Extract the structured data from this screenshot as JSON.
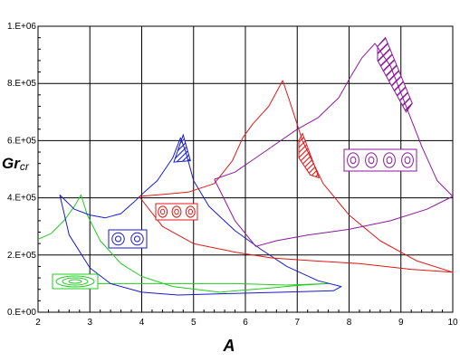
{
  "chart_data": {
    "type": "line",
    "xlabel": "A",
    "ylabel": {
      "main": "Gr",
      "sub": "cr"
    },
    "xlim": [
      2,
      10
    ],
    "ylim": [
      0,
      1000000
    ],
    "x_ticks": [
      "2",
      "3",
      "4",
      "5",
      "6",
      "7",
      "8",
      "9",
      "10"
    ],
    "y_ticks": [
      "0.E+00",
      "2.E+05",
      "4.E+05",
      "6.E+05",
      "8.E+05",
      "1.E+06"
    ],
    "grid": true,
    "colors": {
      "green": "#22cc22",
      "blue": "#1a1acc",
      "red": "#e01818",
      "purple": "#8a1a9a"
    },
    "series": [
      {
        "color": "green",
        "marker": "one-oval",
        "points": [
          [
            2,
            255000
          ],
          [
            2.25,
            275000
          ],
          [
            2.5,
            320000
          ],
          [
            2.7,
            370000
          ],
          [
            2.83,
            410000
          ],
          [
            2.95,
            340000
          ],
          [
            3.2,
            250000
          ],
          [
            3.6,
            170000
          ],
          [
            4,
            125000
          ],
          [
            4.6,
            90000
          ],
          [
            5.5,
            70000
          ],
          [
            6.5,
            85000
          ],
          [
            7.1,
            95000
          ],
          [
            7.6,
            100000
          ],
          [
            6.8,
            95000
          ],
          [
            5.8,
            100000
          ],
          [
            4.6,
            100000
          ],
          [
            3.6,
            100000
          ],
          [
            2.9,
            100000
          ]
        ]
      },
      {
        "color": "blue",
        "marker": "two-ovals",
        "points": [
          [
            2.42,
            410000
          ],
          [
            2.7,
            360000
          ],
          [
            3.0,
            340000
          ],
          [
            3.3,
            330000
          ],
          [
            3.6,
            345000
          ],
          [
            3.85,
            385000
          ],
          [
            4.05,
            420000
          ],
          [
            4.3,
            460000
          ],
          [
            4.6,
            540000
          ],
          [
            4.75,
            610000
          ],
          [
            4.85,
            560000
          ],
          [
            5.0,
            460000
          ],
          [
            5.3,
            370000
          ],
          [
            5.8,
            285000
          ],
          [
            6.3,
            220000
          ],
          [
            6.8,
            160000
          ],
          [
            7.4,
            110000
          ],
          [
            7.85,
            90000
          ],
          [
            7.7,
            75000
          ],
          [
            6.7,
            70000
          ],
          [
            5.6,
            65000
          ],
          [
            4.7,
            60000
          ],
          [
            4.0,
            70000
          ],
          [
            3.4,
            100000
          ],
          [
            3.0,
            155000
          ],
          [
            2.6,
            270000
          ],
          [
            2.42,
            410000
          ]
        ]
      },
      {
        "color": "red",
        "marker": "three-ovals",
        "points": [
          [
            3.95,
            405000
          ],
          [
            4.3,
            410000
          ],
          [
            4.9,
            420000
          ],
          [
            5.4,
            450000
          ],
          [
            5.75,
            530000
          ],
          [
            5.95,
            610000
          ],
          [
            6.15,
            660000
          ],
          [
            6.45,
            720000
          ],
          [
            6.72,
            810000
          ],
          [
            6.85,
            740000
          ],
          [
            7.1,
            600000
          ],
          [
            7.5,
            450000
          ],
          [
            8.0,
            340000
          ],
          [
            8.6,
            250000
          ],
          [
            9.3,
            180000
          ],
          [
            10,
            140000
          ],
          [
            9.2,
            150000
          ],
          [
            8.2,
            170000
          ],
          [
            7.3,
            180000
          ],
          [
            6.5,
            190000
          ],
          [
            5.8,
            210000
          ],
          [
            5.0,
            240000
          ],
          [
            4.4,
            300000
          ],
          [
            3.95,
            405000
          ]
        ]
      },
      {
        "color": "purple",
        "marker": "four-ovals",
        "points": [
          [
            5.4,
            465000
          ],
          [
            5.8,
            490000
          ],
          [
            6.2,
            540000
          ],
          [
            6.6,
            590000
          ],
          [
            7.0,
            640000
          ],
          [
            7.4,
            680000
          ],
          [
            7.8,
            750000
          ],
          [
            8.05,
            830000
          ],
          [
            8.25,
            890000
          ],
          [
            8.5,
            940000
          ],
          [
            8.8,
            860000
          ],
          [
            9.1,
            720000
          ],
          [
            9.4,
            580000
          ],
          [
            9.7,
            460000
          ],
          [
            10,
            405000
          ],
          [
            9.5,
            360000
          ],
          [
            8.8,
            320000
          ],
          [
            8.0,
            290000
          ],
          [
            7.2,
            270000
          ],
          [
            6.6,
            250000
          ],
          [
            6.2,
            230000
          ],
          [
            5.8,
            320000
          ],
          [
            5.4,
            465000
          ]
        ]
      }
    ],
    "hatched_regions": [
      {
        "color": "blue",
        "polygon": [
          [
            4.62,
            525000
          ],
          [
            4.8,
            620000
          ],
          [
            4.94,
            530000
          ]
        ]
      },
      {
        "color": "red",
        "polygon": [
          [
            7.03,
            600000
          ],
          [
            7.1,
            625000
          ],
          [
            7.42,
            470000
          ],
          [
            7.25,
            480000
          ],
          [
            7.03,
            540000
          ]
        ]
      },
      {
        "color": "purple",
        "polygon": [
          [
            8.55,
            930000
          ],
          [
            8.7,
            960000
          ],
          [
            9.22,
            730000
          ],
          [
            9.1,
            700000
          ],
          [
            8.55,
            880000
          ]
        ]
      }
    ]
  }
}
